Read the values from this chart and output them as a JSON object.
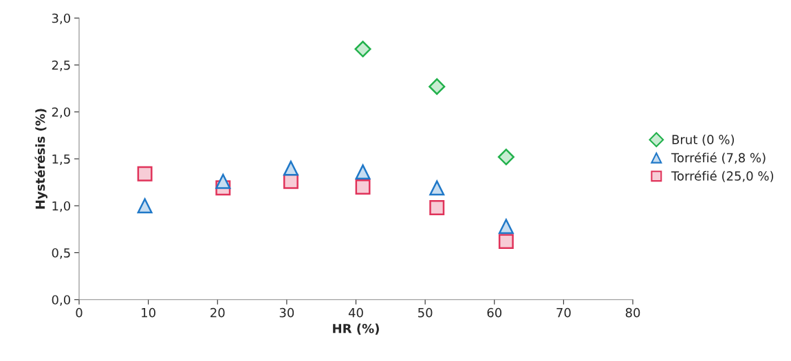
{
  "chart_data": {
    "type": "scatter",
    "xlabel": "HR (%)",
    "ylabel": "Hystérésis (%)",
    "xlim": [
      0,
      80
    ],
    "xticks": [
      0,
      10,
      20,
      30,
      40,
      50,
      60,
      70,
      80
    ],
    "ylim": [
      0,
      3.0
    ],
    "yticks": [
      {
        "value": 0,
        "label": "0,0"
      },
      {
        "value": 0.5,
        "label": "0,5"
      },
      {
        "value": 1.0,
        "label": "1,0"
      },
      {
        "value": 1.5,
        "label": "1,5"
      },
      {
        "value": 2.0,
        "label": "2,0"
      },
      {
        "value": 2.5,
        "label": "2,5"
      },
      {
        "value": 3.0,
        "label": "3,0"
      }
    ],
    "grid": false,
    "legend": "right",
    "series": [
      {
        "name": "Brut (0 %)",
        "color": "#22b14c",
        "marker": "diamond",
        "x": [
          41.0,
          51.7,
          61.7
        ],
        "values": [
          2.67,
          2.27,
          1.52
        ]
      },
      {
        "name": "Torréfié (7,8 %)",
        "color": "#1f78c8",
        "marker": "triangle",
        "x": [
          9.5,
          20.8,
          30.6,
          41.0,
          51.7,
          61.7
        ],
        "values": [
          1.0,
          1.26,
          1.4,
          1.36,
          1.19,
          0.78
        ]
      },
      {
        "name": "Torréfié (25,0 %)",
        "color": "#e0335a",
        "marker": "square",
        "x": [
          9.5,
          20.8,
          30.6,
          41.0,
          51.7,
          61.7
        ],
        "values": [
          1.34,
          1.19,
          1.26,
          1.2,
          0.98,
          0.62
        ]
      }
    ]
  }
}
